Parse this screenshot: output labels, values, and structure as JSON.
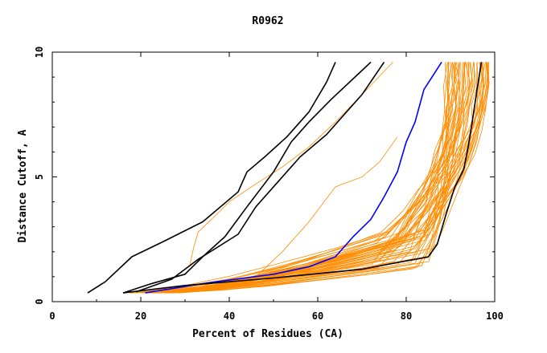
{
  "chart_data": {
    "type": "line",
    "title": "R0962",
    "xlabel": "Percent of Residues (CA)",
    "ylabel": "Distance Cutoff, A",
    "xlim": [
      0,
      100
    ],
    "ylim": [
      0,
      10
    ],
    "x_ticks": [
      "0",
      "20",
      "40",
      "60",
      "80",
      "100"
    ],
    "y_ticks": [
      "0",
      "5",
      "10"
    ],
    "grid": false,
    "colors": {
      "highlight_black": "#000000",
      "highlight_blue": "#0000ff",
      "models_orange": "#ff8c00"
    },
    "series": [
      {
        "color": "black",
        "x": [
          8,
          12,
          18,
          25,
          34,
          42,
          44,
          48,
          53,
          58,
          62,
          64
        ],
        "y": [
          0.35,
          0.8,
          1.8,
          2.4,
          3.2,
          4.4,
          5.2,
          5.8,
          6.6,
          7.6,
          8.8,
          9.6
        ]
      },
      {
        "color": "black",
        "x": [
          16,
          22,
          30,
          34,
          39,
          44,
          50,
          54,
          58,
          63,
          69,
          72
        ],
        "y": [
          0.35,
          0.7,
          1.1,
          1.8,
          2.6,
          3.8,
          5.2,
          6.4,
          7.2,
          8.1,
          9.1,
          9.6
        ]
      },
      {
        "color": "black",
        "x": [
          19,
          27,
          33,
          42,
          46,
          51,
          56,
          62,
          67,
          70,
          75
        ],
        "y": [
          0.4,
          0.9,
          1.7,
          2.7,
          3.8,
          4.8,
          5.8,
          6.7,
          7.7,
          8.3,
          9.6
        ]
      },
      {
        "color": "blue",
        "x": [
          21,
          35,
          50,
          58,
          64,
          68,
          72,
          75,
          78,
          80,
          82,
          84,
          88
        ],
        "y": [
          0.35,
          0.75,
          1.1,
          1.4,
          1.8,
          2.6,
          3.3,
          4.2,
          5.2,
          6.4,
          7.2,
          8.5,
          9.6
        ]
      },
      {
        "color": "black",
        "x": [
          16,
          30,
          50,
          70,
          85,
          87,
          89,
          91,
          93,
          94,
          95,
          96,
          97
        ],
        "y": [
          0.35,
          0.65,
          0.95,
          1.3,
          1.8,
          2.3,
          3.5,
          4.6,
          5.3,
          6.2,
          7.3,
          8.5,
          9.6
        ]
      }
    ],
    "orange_model_count": 50
  }
}
